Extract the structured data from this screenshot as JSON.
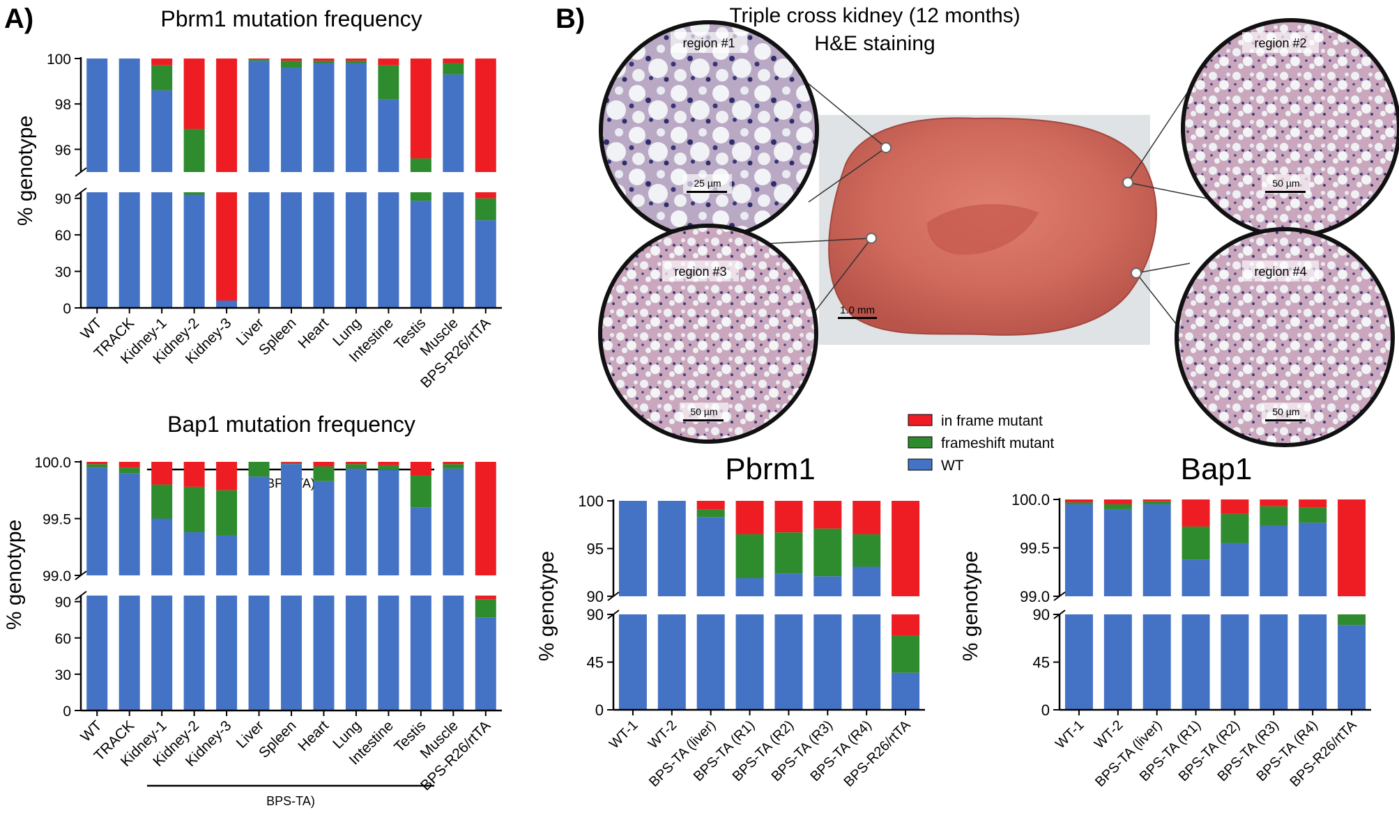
{
  "figure": {
    "panel_a": "A)",
    "panel_b": "B)",
    "photo_title_1": "Triple cross kidney (12 months)",
    "photo_title_2": "H&E staining",
    "photo_scale": "1.0 mm",
    "insets": [
      {
        "label": "region #1",
        "scale": "25 µm"
      },
      {
        "label": "region #2",
        "scale": "50 µm"
      },
      {
        "label": "region #3",
        "scale": "50 µm"
      },
      {
        "label": "region #4",
        "scale": "50 µm"
      }
    ]
  },
  "legend": {
    "items": [
      {
        "label": "in frame mutant",
        "color": "#ee1c23"
      },
      {
        "label": "frameshift mutant",
        "color": "#2e8b2e"
      },
      {
        "label": "WT",
        "color": "#4472c4"
      }
    ]
  },
  "colors": {
    "wt": "#4472c4",
    "frameshift": "#2e8b2e",
    "inframe": "#ee1c23"
  },
  "chart_data": [
    {
      "id": "pbrm1_tissues",
      "type": "bar",
      "title": "Pbrm1 mutation frequency",
      "ylabel": "% genotype",
      "stacked": true,
      "broken_y_axis": true,
      "upper_ylim": [
        95,
        100
      ],
      "upper_ticks": [
        "100",
        "98",
        "96"
      ],
      "lower_ylim": [
        0,
        95
      ],
      "lower_ticks": [
        "90",
        "60",
        "30",
        "0"
      ],
      "categories": [
        "WT",
        "TRACK",
        "Kidney-1",
        "Kidney-2",
        "Kidney-3",
        "Liver",
        "Spleen",
        "Heart",
        "Lung",
        "Intestine",
        "Testis",
        "Muscle",
        "BPS-R26/rtTA"
      ],
      "group_label": "BPS-TA)",
      "group_range": [
        2,
        10
      ],
      "series": [
        {
          "name": "WT",
          "values": [
            100,
            100,
            98.6,
            93.0,
            6.0,
            99.9,
            99.6,
            99.8,
            99.8,
            98.2,
            88.0,
            99.3,
            72.0
          ]
        },
        {
          "name": "frameshift mutant",
          "values": [
            0,
            0,
            1.1,
            3.9,
            0,
            0.05,
            0.3,
            0.1,
            0.1,
            1.5,
            7.6,
            0.5,
            18.0
          ]
        },
        {
          "name": "in frame mutant",
          "values": [
            0,
            0,
            0.3,
            3.1,
            94.0,
            0.05,
            0.1,
            0.1,
            0.1,
            0.3,
            4.4,
            0.2,
            10.0
          ]
        }
      ]
    },
    {
      "id": "bap1_tissues",
      "type": "bar",
      "title": "Bap1 mutation frequency",
      "ylabel": "% genotype",
      "stacked": true,
      "broken_y_axis": true,
      "upper_ylim": [
        99.0,
        100.0
      ],
      "upper_ticks": [
        "100.0",
        "99.5",
        "99.0"
      ],
      "lower_ylim": [
        0,
        95
      ],
      "lower_ticks": [
        "90",
        "60",
        "30",
        "0"
      ],
      "categories": [
        "WT",
        "TRACK",
        "Kidney-1",
        "Kidney-2",
        "Kidney-3",
        "Liver",
        "Spleen",
        "Heart",
        "Lung",
        "Intestine",
        "Testis",
        "Muscle",
        "BPS-R26/rtTA"
      ],
      "group_label": "BPS-TA)",
      "group_range": [
        2,
        10
      ],
      "series": [
        {
          "name": "WT",
          "values": [
            99.95,
            99.9,
            99.5,
            99.38,
            99.35,
            99.87,
            99.98,
            99.83,
            99.94,
            99.93,
            99.6,
            99.94,
            77.0
          ]
        },
        {
          "name": "frameshift mutant",
          "values": [
            0.03,
            0.05,
            0.3,
            0.4,
            0.4,
            0.13,
            0.01,
            0.13,
            0.04,
            0.04,
            0.28,
            0.04,
            15.0
          ]
        },
        {
          "name": "in frame mutant",
          "values": [
            0.02,
            0.05,
            0.2,
            0.22,
            0.25,
            0,
            0.01,
            0.04,
            0.02,
            0.03,
            0.12,
            0.02,
            8.0
          ]
        }
      ]
    },
    {
      "id": "pbrm1_regions",
      "type": "bar",
      "title": "Pbrm1",
      "ylabel": "% genotype",
      "stacked": true,
      "broken_y_axis": true,
      "upper_ylim": [
        90,
        100
      ],
      "upper_ticks": [
        "100",
        "95",
        "90"
      ],
      "lower_ylim": [
        0,
        90
      ],
      "lower_ticks": [
        "90",
        "45",
        "0"
      ],
      "categories": [
        "WT-1",
        "WT-2",
        "BPS-TA (liver)",
        "BPS-TA (R1)",
        "BPS-TA (R2)",
        "BPS-TA (R3)",
        "BPS-TA (R4)",
        "BPS-R26/rtTA"
      ],
      "series": [
        {
          "name": "WT",
          "values": [
            100,
            100,
            98.3,
            91.9,
            92.4,
            92.1,
            93.1,
            35.0
          ]
        },
        {
          "name": "frameshift mutant",
          "values": [
            0,
            0,
            0.8,
            4.6,
            4.3,
            5.0,
            3.4,
            35.0
          ]
        },
        {
          "name": "in frame mutant",
          "values": [
            0,
            0,
            0.9,
            3.5,
            3.3,
            2.9,
            3.5,
            30.0
          ]
        }
      ]
    },
    {
      "id": "bap1_regions",
      "type": "bar",
      "title": "Bap1",
      "ylabel": "% genotype",
      "stacked": true,
      "broken_y_axis": true,
      "upper_ylim": [
        99.0,
        100.0
      ],
      "upper_ticks": [
        "100.0",
        "99.5",
        "99.0"
      ],
      "lower_ylim": [
        0,
        90
      ],
      "lower_ticks": [
        "90",
        "45",
        "0"
      ],
      "categories": [
        "WT-1",
        "WT-2",
        "BPS-TA (liver)",
        "BPS-TA (R1)",
        "BPS-TA (R2)",
        "BPS-TA (R3)",
        "BPS-TA (R4)",
        "BPS-R26/rtTA"
      ],
      "series": [
        {
          "name": "WT",
          "values": [
            99.95,
            99.9,
            99.95,
            99.38,
            99.55,
            99.73,
            99.76,
            80.0
          ]
        },
        {
          "name": "frameshift mutant",
          "values": [
            0.02,
            0.05,
            0.03,
            0.34,
            0.3,
            0.2,
            0.16,
            14.0
          ]
        },
        {
          "name": "in frame mutant",
          "values": [
            0.03,
            0.05,
            0.02,
            0.28,
            0.15,
            0.07,
            0.08,
            6.0
          ]
        }
      ]
    }
  ]
}
